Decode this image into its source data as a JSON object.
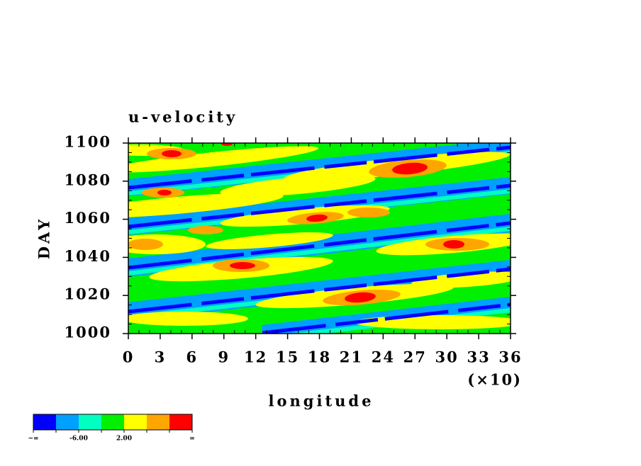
{
  "chart_data": {
    "type": "contour",
    "title": "u-velocity",
    "xlabel": "longitude",
    "ylabel": "DAY",
    "x_multiplier": "(×10)",
    "xlim": [
      0,
      36
    ],
    "xticks": [
      0,
      3,
      6,
      9,
      12,
      15,
      18,
      21,
      24,
      27,
      30,
      33,
      36
    ],
    "ylim": [
      1000,
      1100
    ],
    "yticks": [
      1000,
      1020,
      1040,
      1060,
      1080,
      1100
    ],
    "colorbar": {
      "colors": [
        "#0000ff",
        "#00a0ff",
        "#00ffc0",
        "#00f000",
        "#ffff00",
        "#ffa500",
        "#ff0000"
      ],
      "labels": [
        "−∞",
        null,
        "-6.00",
        null,
        "2.00",
        null,
        null,
        "∞"
      ]
    }
  }
}
